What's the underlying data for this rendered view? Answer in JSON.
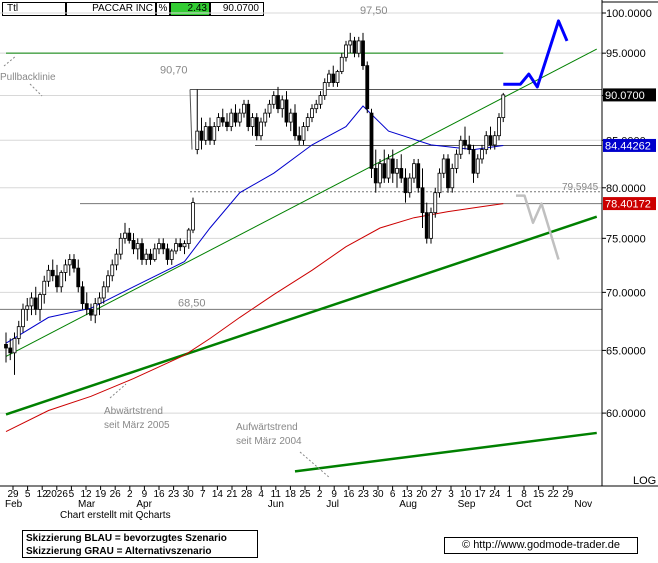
{
  "header": {
    "symbol": "Ttl",
    "name": "PACCAR INC",
    "pct_label": "%",
    "change": "2.43",
    "last": "90.0700"
  },
  "colors": {
    "up_box": "#33cc33",
    "blue_scenario": "#0000ff",
    "grey_scenario": "#c0c0c0",
    "ma_blue": "#0000cc",
    "ma_red": "#cc0000",
    "trend_green": "#008000"
  },
  "chart_data": {
    "type": "candlestick",
    "y_axis": {
      "ticks": [
        100.0,
        95.0,
        90.0,
        85.0,
        80.0,
        75.0,
        70.0,
        65.0,
        60.0
      ],
      "tick_labels": [
        "100.0000",
        "95.0000",
        "90.0000",
        "85.0000",
        "80.0000",
        "75.0000",
        "70.0000",
        "65.0000",
        "60.0000"
      ],
      "scale": "log",
      "scale_label": "LOG",
      "range": [
        55.5,
        100.5
      ]
    },
    "x_axis": {
      "labels": [
        "29",
        "5",
        "12",
        "2026",
        "5",
        "12",
        "19",
        "26",
        "2",
        "9",
        "16",
        "23",
        "30",
        "7",
        "14",
        "21",
        "28",
        "4",
        "11",
        "18",
        "25",
        "2",
        "9",
        "16",
        "23",
        "30",
        "6",
        "13",
        "20",
        "27",
        "3",
        "10",
        "17",
        "24",
        "1",
        "8",
        "15",
        "22",
        "29"
      ],
      "months": [
        "Feb",
        "Mar",
        "Apr",
        "Jun",
        "Jul",
        "Aug",
        "Sep",
        "Oct",
        "Nov"
      ]
    },
    "price_badges": [
      {
        "value": 90.07,
        "label": "90.0700",
        "style": "black"
      },
      {
        "value": 84.44262,
        "label": "84.44262",
        "style": "blue"
      },
      {
        "value": 78.40172,
        "label": "78.40172",
        "style": "red"
      }
    ],
    "horizontal_levels": [
      {
        "value": 90.7,
        "label": "90,70"
      },
      {
        "value": 84.44,
        "label": ""
      },
      {
        "value": 79.5945,
        "label": "79,5945",
        "dashed": true
      },
      {
        "value": 78.4,
        "label": ""
      },
      {
        "value": 68.5,
        "label": "68,50"
      }
    ],
    "annotations": [
      {
        "text": "97,50"
      },
      {
        "text": "Pullbacklinie"
      },
      {
        "text": "Abwärtstrend seit März 2005"
      },
      {
        "text": "Aufwärtstrend seit März 2004"
      }
    ],
    "candles": [
      [
        65.5,
        66.5,
        64,
        65.2
      ],
      [
        65.2,
        66,
        64.2,
        64.8
      ],
      [
        64.8,
        66.5,
        63,
        66
      ],
      [
        66,
        67.5,
        65.5,
        67
      ],
      [
        67,
        69,
        66.5,
        68.5
      ],
      [
        68.5,
        69.5,
        67.5,
        68.8
      ],
      [
        68.8,
        70,
        68,
        69.5
      ],
      [
        69.5,
        70.5,
        68,
        68.5
      ],
      [
        68.5,
        70,
        67.5,
        69.8
      ],
      [
        69.8,
        71.5,
        69,
        71
      ],
      [
        71,
        72.5,
        70.5,
        72
      ],
      [
        72,
        73,
        71,
        71.5
      ],
      [
        71.5,
        72.5,
        70,
        70.5
      ],
      [
        70.5,
        72,
        70,
        71.8
      ],
      [
        71.8,
        73,
        71,
        72.5
      ],
      [
        72.5,
        73.5,
        71.5,
        73
      ],
      [
        73,
        73.5,
        71.8,
        72.2
      ],
      [
        72.2,
        73,
        70,
        70.5
      ],
      [
        70.5,
        71,
        68.5,
        69
      ],
      [
        69,
        70,
        68,
        68.5
      ],
      [
        68.5,
        69,
        67.5,
        68
      ],
      [
        68,
        69.5,
        67.3,
        69
      ],
      [
        69,
        70,
        68,
        69.5
      ],
      [
        69.5,
        71,
        69,
        70.5
      ],
      [
        70.5,
        72,
        70,
        71.5
      ],
      [
        71.5,
        73,
        71,
        72.5
      ],
      [
        72.5,
        74,
        72,
        73.5
      ],
      [
        73.5,
        75.5,
        73,
        75
      ],
      [
        75,
        76.5,
        74.5,
        75.5
      ],
      [
        75.5,
        76,
        74.5,
        74.8
      ],
      [
        74.8,
        75.5,
        73.5,
        74
      ],
      [
        74,
        75,
        73,
        74.5
      ],
      [
        74.5,
        75,
        72.5,
        73
      ],
      [
        73,
        74,
        72.5,
        73.5
      ],
      [
        73.5,
        74,
        72.5,
        73
      ],
      [
        73,
        74.5,
        72.8,
        74
      ],
      [
        74,
        75,
        73.5,
        74.5
      ],
      [
        74.5,
        75,
        73.5,
        74
      ],
      [
        74,
        74.5,
        72.5,
        73
      ],
      [
        73,
        74,
        72.5,
        73.8
      ],
      [
        73.8,
        75,
        73.5,
        74.5
      ],
      [
        74.5,
        75,
        73.8,
        74.2
      ],
      [
        74.2,
        74.8,
        73.5,
        74.5
      ],
      [
        74.5,
        76,
        74,
        75.8
      ],
      [
        75.8,
        79,
        75.5,
        78.5
      ],
      [
        84,
        90.7,
        83.5,
        86
      ],
      [
        86,
        87.5,
        84,
        85
      ],
      [
        85,
        87,
        84.5,
        86.5
      ],
      [
        86.5,
        87.5,
        84.5,
        85
      ],
      [
        85,
        87,
        84.5,
        86.5
      ],
      [
        86.5,
        88,
        86,
        87.5
      ],
      [
        87.5,
        88.5,
        86.5,
        87
      ],
      [
        87,
        88,
        86,
        86.5
      ],
      [
        86.5,
        88.5,
        86,
        88
      ],
      [
        88,
        89,
        86.5,
        87
      ],
      [
        87,
        88.5,
        86.5,
        88
      ],
      [
        88,
        89.5,
        87.5,
        89
      ],
      [
        89,
        89.5,
        86,
        86.5
      ],
      [
        86.5,
        88,
        85.5,
        87.5
      ],
      [
        87.5,
        88,
        85,
        85.5
      ],
      [
        85.5,
        87.5,
        85,
        87
      ],
      [
        87,
        88.5,
        86.5,
        88
      ],
      [
        88,
        89.5,
        87.5,
        89
      ],
      [
        89,
        90.5,
        88.5,
        90
      ],
      [
        90,
        91,
        88,
        88.5
      ],
      [
        88.5,
        90,
        87.5,
        89.5
      ],
      [
        89.5,
        90.5,
        86.5,
        87
      ],
      [
        87,
        88.5,
        86,
        88
      ],
      [
        88,
        89,
        85,
        85.5
      ],
      [
        85.5,
        86.5,
        84.5,
        85
      ],
      [
        85,
        87,
        84.5,
        86.5
      ],
      [
        86.5,
        88,
        86,
        87.5
      ],
      [
        87.5,
        89,
        87,
        88.5
      ],
      [
        88.5,
        89.5,
        88,
        89
      ],
      [
        89,
        90.5,
        88.5,
        90
      ],
      [
        90,
        92,
        89.5,
        91.5
      ],
      [
        91.5,
        93,
        91,
        92.5
      ],
      [
        92.5,
        93.5,
        91,
        91.5
      ],
      [
        91.5,
        93,
        91,
        92.8
      ],
      [
        92.8,
        95,
        92.5,
        94.5
      ],
      [
        94.5,
        96.5,
        94,
        96
      ],
      [
        96,
        97.5,
        95,
        96.5
      ],
      [
        96.5,
        97,
        94.5,
        95
      ],
      [
        95,
        97,
        94.5,
        96.5
      ],
      [
        96.5,
        97.5,
        93,
        93.5
      ],
      [
        93.5,
        94,
        88,
        88.5
      ],
      [
        88,
        88.5,
        81,
        82
      ],
      [
        82,
        84,
        79.5,
        80.5
      ],
      [
        80.5,
        83,
        80,
        82.5
      ],
      [
        82.5,
        84,
        80.5,
        81
      ],
      [
        81,
        83.5,
        80.5,
        83
      ],
      [
        83,
        84,
        80.5,
        81.5
      ],
      [
        81.5,
        83,
        80,
        82
      ],
      [
        82,
        83.5,
        80.5,
        81
      ],
      [
        81,
        82,
        78.5,
        79.5
      ],
      [
        79.5,
        81.5,
        79,
        81
      ],
      [
        81,
        83,
        80.5,
        82.5
      ],
      [
        82.5,
        83,
        79.5,
        80
      ],
      [
        80,
        82,
        76,
        77.5
      ],
      [
        77.5,
        78.5,
        74.5,
        75
      ],
      [
        75,
        78,
        74.5,
        77.5
      ],
      [
        77.5,
        80,
        77,
        79.5
      ],
      [
        79.5,
        82,
        79,
        81.5
      ],
      [
        81.5,
        83.5,
        81,
        83
      ],
      [
        83,
        83.5,
        79.5,
        80
      ],
      [
        80,
        82.5,
        79.5,
        82
      ],
      [
        82,
        84,
        81.5,
        83.5
      ],
      [
        83.5,
        85.5,
        83,
        85
      ],
      [
        85,
        86.5,
        84,
        84.5
      ],
      [
        84.5,
        85.5,
        83.5,
        84
      ],
      [
        84,
        84.5,
        80.5,
        81.5
      ],
      [
        81.5,
        83.5,
        81,
        83
      ],
      [
        83,
        84.5,
        82.5,
        84
      ],
      [
        84,
        86,
        83.5,
        85.5
      ],
      [
        85.5,
        86.5,
        84,
        84.5
      ],
      [
        84.5,
        86,
        84,
        85.5
      ],
      [
        85.5,
        88,
        85,
        87.5
      ],
      [
        87.5,
        90.3,
        87,
        90.07
      ]
    ],
    "moving_averages": [
      {
        "color": "blue",
        "points": [
          [
            0,
            65.6
          ],
          [
            10,
            67.8
          ],
          [
            20,
            68.6
          ],
          [
            30,
            70.5
          ],
          [
            42,
            72.8
          ],
          [
            48,
            76.0
          ],
          [
            55,
            79.5
          ],
          [
            63,
            81.5
          ],
          [
            72,
            84.5
          ],
          [
            80,
            86.5
          ],
          [
            84,
            88.8
          ],
          [
            90,
            86.0
          ],
          [
            100,
            84.5
          ],
          [
            110,
            84.0
          ],
          [
            117,
            84.44
          ]
        ]
      },
      {
        "color": "red",
        "points": [
          [
            0,
            58.6
          ],
          [
            10,
            60.2
          ],
          [
            20,
            61.3
          ],
          [
            30,
            62.7
          ],
          [
            42,
            64.6
          ],
          [
            48,
            66.0
          ],
          [
            55,
            67.8
          ],
          [
            63,
            69.8
          ],
          [
            72,
            72.0
          ],
          [
            80,
            74.2
          ],
          [
            88,
            76.0
          ],
          [
            96,
            77.0
          ],
          [
            104,
            77.6
          ],
          [
            112,
            78.1
          ],
          [
            117,
            78.4
          ]
        ]
      }
    ],
    "trendlines": [
      {
        "name": "Pullbacklinie",
        "points": [
          [
            0,
            95.0
          ],
          [
            117,
            95.0
          ]
        ]
      },
      {
        "name": "Aufwärtstrend seit März 2004",
        "points": [
          [
            0,
            59.9
          ],
          [
            139,
            77.1
          ]
        ]
      },
      {
        "name": "Aufwärtstrend seit März 2004",
        "points": [
          [
            68,
            55.7
          ],
          [
            139,
            58.5
          ]
        ]
      },
      {
        "name": "Abwärtstrend seit März 2005",
        "points": [
          [
            0,
            64.5
          ],
          [
            139,
            95.5
          ]
        ]
      }
    ],
    "scenarios": [
      {
        "name": "blue",
        "points": [
          [
            117,
            91.3
          ],
          [
            121,
            91.3
          ],
          [
            123,
            92.5
          ],
          [
            125,
            91.0
          ],
          [
            130,
            99.0
          ],
          [
            132,
            96.5
          ]
        ]
      },
      {
        "name": "grey",
        "points": [
          [
            120,
            79.2
          ],
          [
            122,
            79.2
          ],
          [
            124,
            76.5
          ],
          [
            126,
            78.4
          ],
          [
            130,
            73.0
          ]
        ]
      }
    ]
  },
  "labels": {
    "created": "Chart erstellt mit Qcharts",
    "legend_line1": "Skizzierung BLAU = bevorzugtes Szenario",
    "legend_line2": "Skizzierung GRAU = Alternativszenario",
    "credit": "© http://www.godmode-trader.de"
  }
}
